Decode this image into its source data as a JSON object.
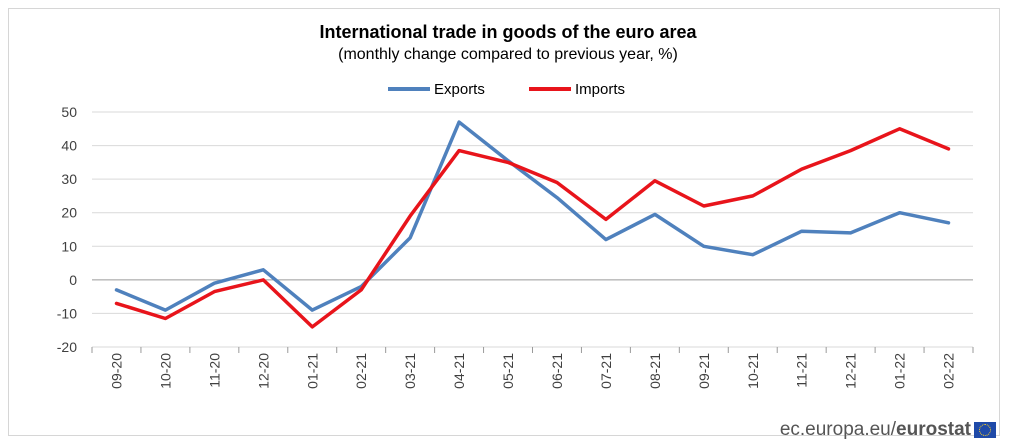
{
  "chart_data": {
    "type": "line",
    "title": "International trade in goods of the euro area",
    "subtitle": "(monthly change compared to previous year, %)",
    "categories": [
      "09-20",
      "10-20",
      "11-20",
      "12-20",
      "01-21",
      "02-21",
      "03-21",
      "04-21",
      "05-21",
      "06-21",
      "07-21",
      "08-21",
      "09-21",
      "10-21",
      "11-21",
      "12-21",
      "01-22",
      "02-22"
    ],
    "series": [
      {
        "name": "Exports",
        "color": "#4f81bd",
        "values": [
          -3,
          -9,
          -1,
          3,
          -9,
          -2,
          12.5,
          47,
          35.5,
          24.5,
          12,
          19.5,
          10,
          7.5,
          14.5,
          14,
          20,
          17
        ]
      },
      {
        "name": "Imports",
        "color": "#e8141b",
        "values": [
          -7,
          -11.5,
          -3.5,
          0,
          -14,
          -3,
          19,
          38.5,
          35,
          29,
          18,
          29.5,
          22,
          25,
          33,
          38.5,
          45,
          39
        ]
      }
    ],
    "yticks": [
      50,
      40,
      30,
      20,
      10,
      0,
      -10,
      -20
    ],
    "ylim": [
      -20,
      50
    ],
    "grid": true,
    "legend_position": "top-center"
  },
  "footer": {
    "domain": "ec.europa.eu",
    "separator": "/",
    "brand": "eurostat",
    "flag_icon": "eu-flag-icon"
  }
}
